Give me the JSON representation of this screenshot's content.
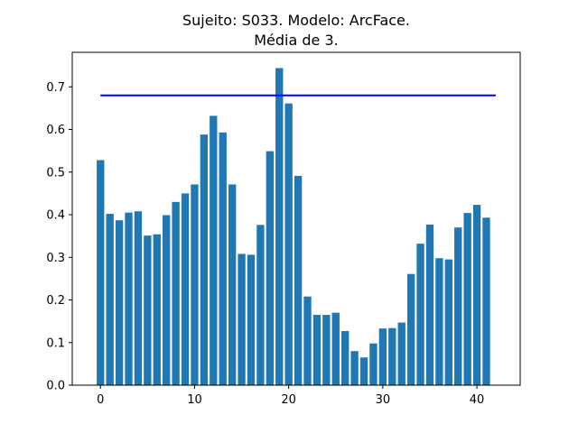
{
  "chart_data": {
    "type": "bar",
    "title": "Sujeito: S033. Modelo: ArcFace.",
    "subtitle": "Média de 3.",
    "xlabel": "",
    "ylabel": "",
    "x": [
      0,
      1,
      2,
      3,
      4,
      5,
      6,
      7,
      8,
      9,
      10,
      11,
      12,
      13,
      14,
      15,
      16,
      17,
      18,
      19,
      20,
      21,
      22,
      23,
      24,
      25,
      26,
      27,
      28,
      29,
      30,
      31,
      32,
      33,
      34,
      35,
      36,
      37,
      38,
      39,
      40,
      41
    ],
    "values": [
      0.528,
      0.402,
      0.387,
      0.405,
      0.408,
      0.351,
      0.354,
      0.399,
      0.43,
      0.45,
      0.471,
      0.588,
      0.632,
      0.593,
      0.471,
      0.308,
      0.306,
      0.376,
      0.549,
      0.744,
      0.661,
      0.491,
      0.208,
      0.165,
      0.165,
      0.17,
      0.127,
      0.08,
      0.065,
      0.098,
      0.133,
      0.134,
      0.147,
      0.261,
      0.332,
      0.377,
      0.298,
      0.295,
      0.37,
      0.404,
      0.423,
      0.393
    ],
    "threshold_line": {
      "y": 0.68,
      "x_start": 0,
      "x_end": 42,
      "color": "#0000ff"
    },
    "bar_color": "#1f77b4",
    "xlim": [
      -3.0,
      44.6
    ],
    "ylim": [
      0,
      0.781
    ],
    "xticks": [
      0,
      10,
      20,
      30,
      40
    ],
    "xtick_labels": [
      "0",
      "10",
      "20",
      "30",
      "40"
    ],
    "yticks": [
      0.0,
      0.1,
      0.2,
      0.3,
      0.4,
      0.5,
      0.6,
      0.7
    ],
    "ytick_labels": [
      "0.0",
      "0.1",
      "0.2",
      "0.3",
      "0.4",
      "0.5",
      "0.6",
      "0.7"
    ],
    "grid": false,
    "legend": "none"
  }
}
